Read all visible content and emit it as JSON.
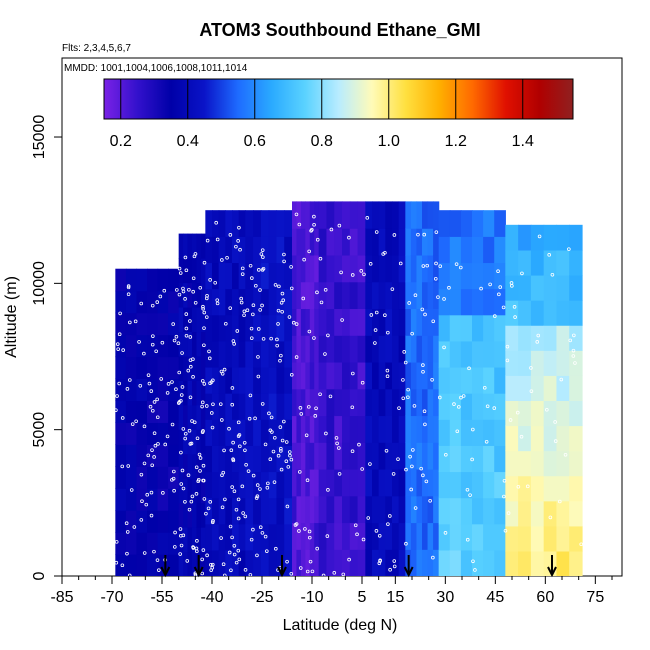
{
  "chart_data": {
    "type": "heatmap",
    "title": "ATOM3 Southbound Ethane_GMI",
    "flights_label": "Flts: 2,3,4,5,6,7",
    "dates_label": "MMDD: 1001,1004,1006,1008,1011,1014",
    "xlabel": "Latitude (deg N)",
    "ylabel": "Altitude (m)",
    "xlim": [
      -85,
      83
    ],
    "ylim": [
      0,
      17700
    ],
    "x_ticks": [
      -85,
      -70,
      -55,
      -40,
      -25,
      -10,
      5,
      15,
      30,
      45,
      60,
      75
    ],
    "x_tick_labels": [
      "-85",
      "-70",
      "-55",
      "-40",
      "-25",
      "-10",
      "5",
      "15",
      "30",
      "45",
      "60",
      "75"
    ],
    "y_ticks": [
      0,
      5000,
      10000,
      15000
    ],
    "y_tick_labels": [
      "0",
      "5000",
      "10000",
      "15000"
    ],
    "colorbar": {
      "range": [
        0.15,
        1.55
      ],
      "ticks": [
        0.2,
        0.4,
        0.6,
        0.8,
        1.0,
        1.2,
        1.4
      ],
      "tick_labels": [
        "0.2",
        "0.4",
        "0.6",
        "0.8",
        "1.0",
        "1.2",
        "1.4"
      ],
      "colors": [
        "#7a22e6",
        "#3311cc",
        "#0000a8",
        "#0a14c8",
        "#1e6bff",
        "#2aaaff",
        "#5ad2ff",
        "#b8ecff",
        "#fffbb8",
        "#ffe040",
        "#ffb000",
        "#ff6a00",
        "#e01000",
        "#b00000",
        "#902020"
      ]
    },
    "lat_bands": [
      {
        "lat": [
          -69,
          -50
        ],
        "top": 10500,
        "value": 0.35
      },
      {
        "lat": [
          -50,
          -42
        ],
        "top": 11700,
        "value": 0.37
      },
      {
        "lat": [
          -42,
          -30
        ],
        "top": 12500,
        "value": 0.4
      },
      {
        "lat": [
          -30,
          -16
        ],
        "top": 12500,
        "value": 0.42
      },
      {
        "lat": [
          -16,
          -8
        ],
        "top": 12800,
        "value": 0.22
      },
      {
        "lat": [
          -8,
          6
        ],
        "top": 12800,
        "value": 0.25
      },
      {
        "lat": [
          6,
          18
        ],
        "top": 12800,
        "value": 0.4
      },
      {
        "lat": [
          18,
          28
        ],
        "top": 12800,
        "value": 0.55
      },
      {
        "lat": [
          28,
          48
        ],
        "top": 12500,
        "value": 0.68
      },
      {
        "lat": [
          48,
          71
        ],
        "top": 12000,
        "value": 0.76
      }
    ],
    "flight_arrows_lat": [
      -54,
      -44,
      -19,
      19,
      62
    ]
  }
}
